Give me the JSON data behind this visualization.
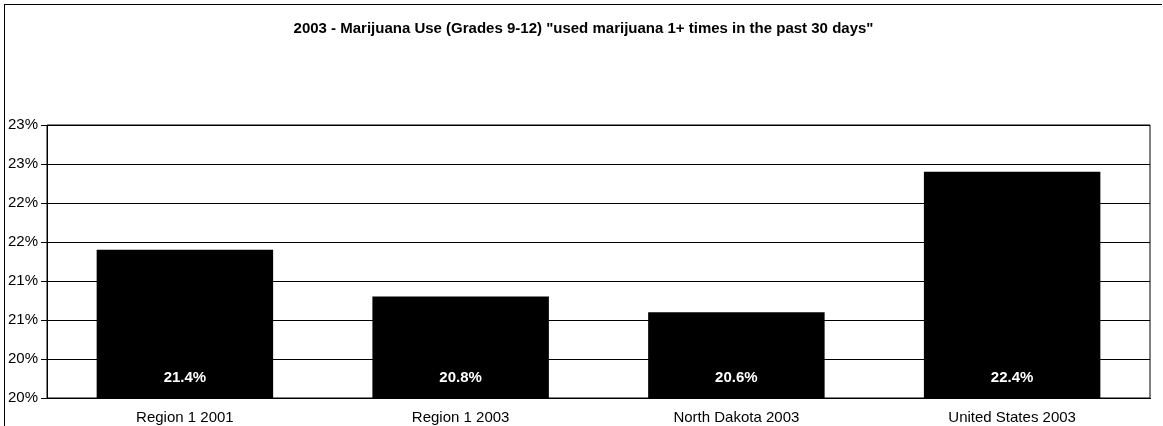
{
  "chart_data": {
    "type": "bar",
    "title": "2003 - Marijuana Use (Grades 9-12) \"used marijuana 1+ times in the past 30 days\"",
    "categories": [
      "Region 1 2001",
      "Region 1 2003",
      "North Dakota 2003",
      "United States 2003"
    ],
    "values": [
      21.4,
      20.8,
      20.6,
      22.4
    ],
    "color": "#000000",
    "ylim": [
      19.5,
      23
    ],
    "yticks": [
      {
        "value": 19.5,
        "label": "20%"
      },
      {
        "value": 20,
        "label": "20%"
      },
      {
        "value": 20.5,
        "label": "21%"
      },
      {
        "value": 21,
        "label": "21%"
      },
      {
        "value": 21.5,
        "label": "22%"
      },
      {
        "value": 22,
        "label": "22%"
      },
      {
        "value": 22.5,
        "label": "23%"
      },
      {
        "value": 23,
        "label": "23%"
      }
    ],
    "value_labels": [
      "21.4%",
      "20.8%",
      "20.6%",
      "22.4%"
    ],
    "grid": "y",
    "legend": false
  }
}
